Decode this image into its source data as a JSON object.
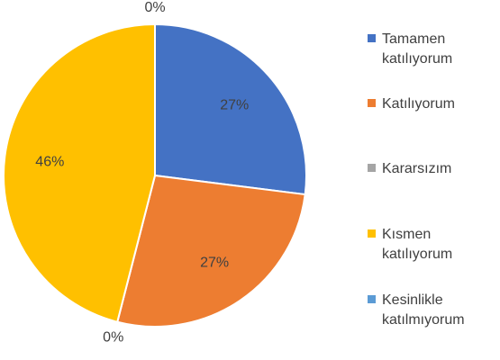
{
  "chart_data": {
    "type": "pie",
    "categories": [
      "Tamamen katılıyorum",
      "Katılıyorum",
      "Kararsızım",
      "Kısmen katılıyorum",
      "Kesinlikle katılmıyorum"
    ],
    "values": [
      27,
      27,
      0,
      46,
      0
    ],
    "value_labels": [
      "27%",
      "27%",
      "0%",
      "46%",
      "0%"
    ],
    "colors": [
      "#4472c4",
      "#ed7d31",
      "#a5a5a5",
      "#ffc000",
      "#5b9bd5"
    ],
    "legend": "right"
  }
}
